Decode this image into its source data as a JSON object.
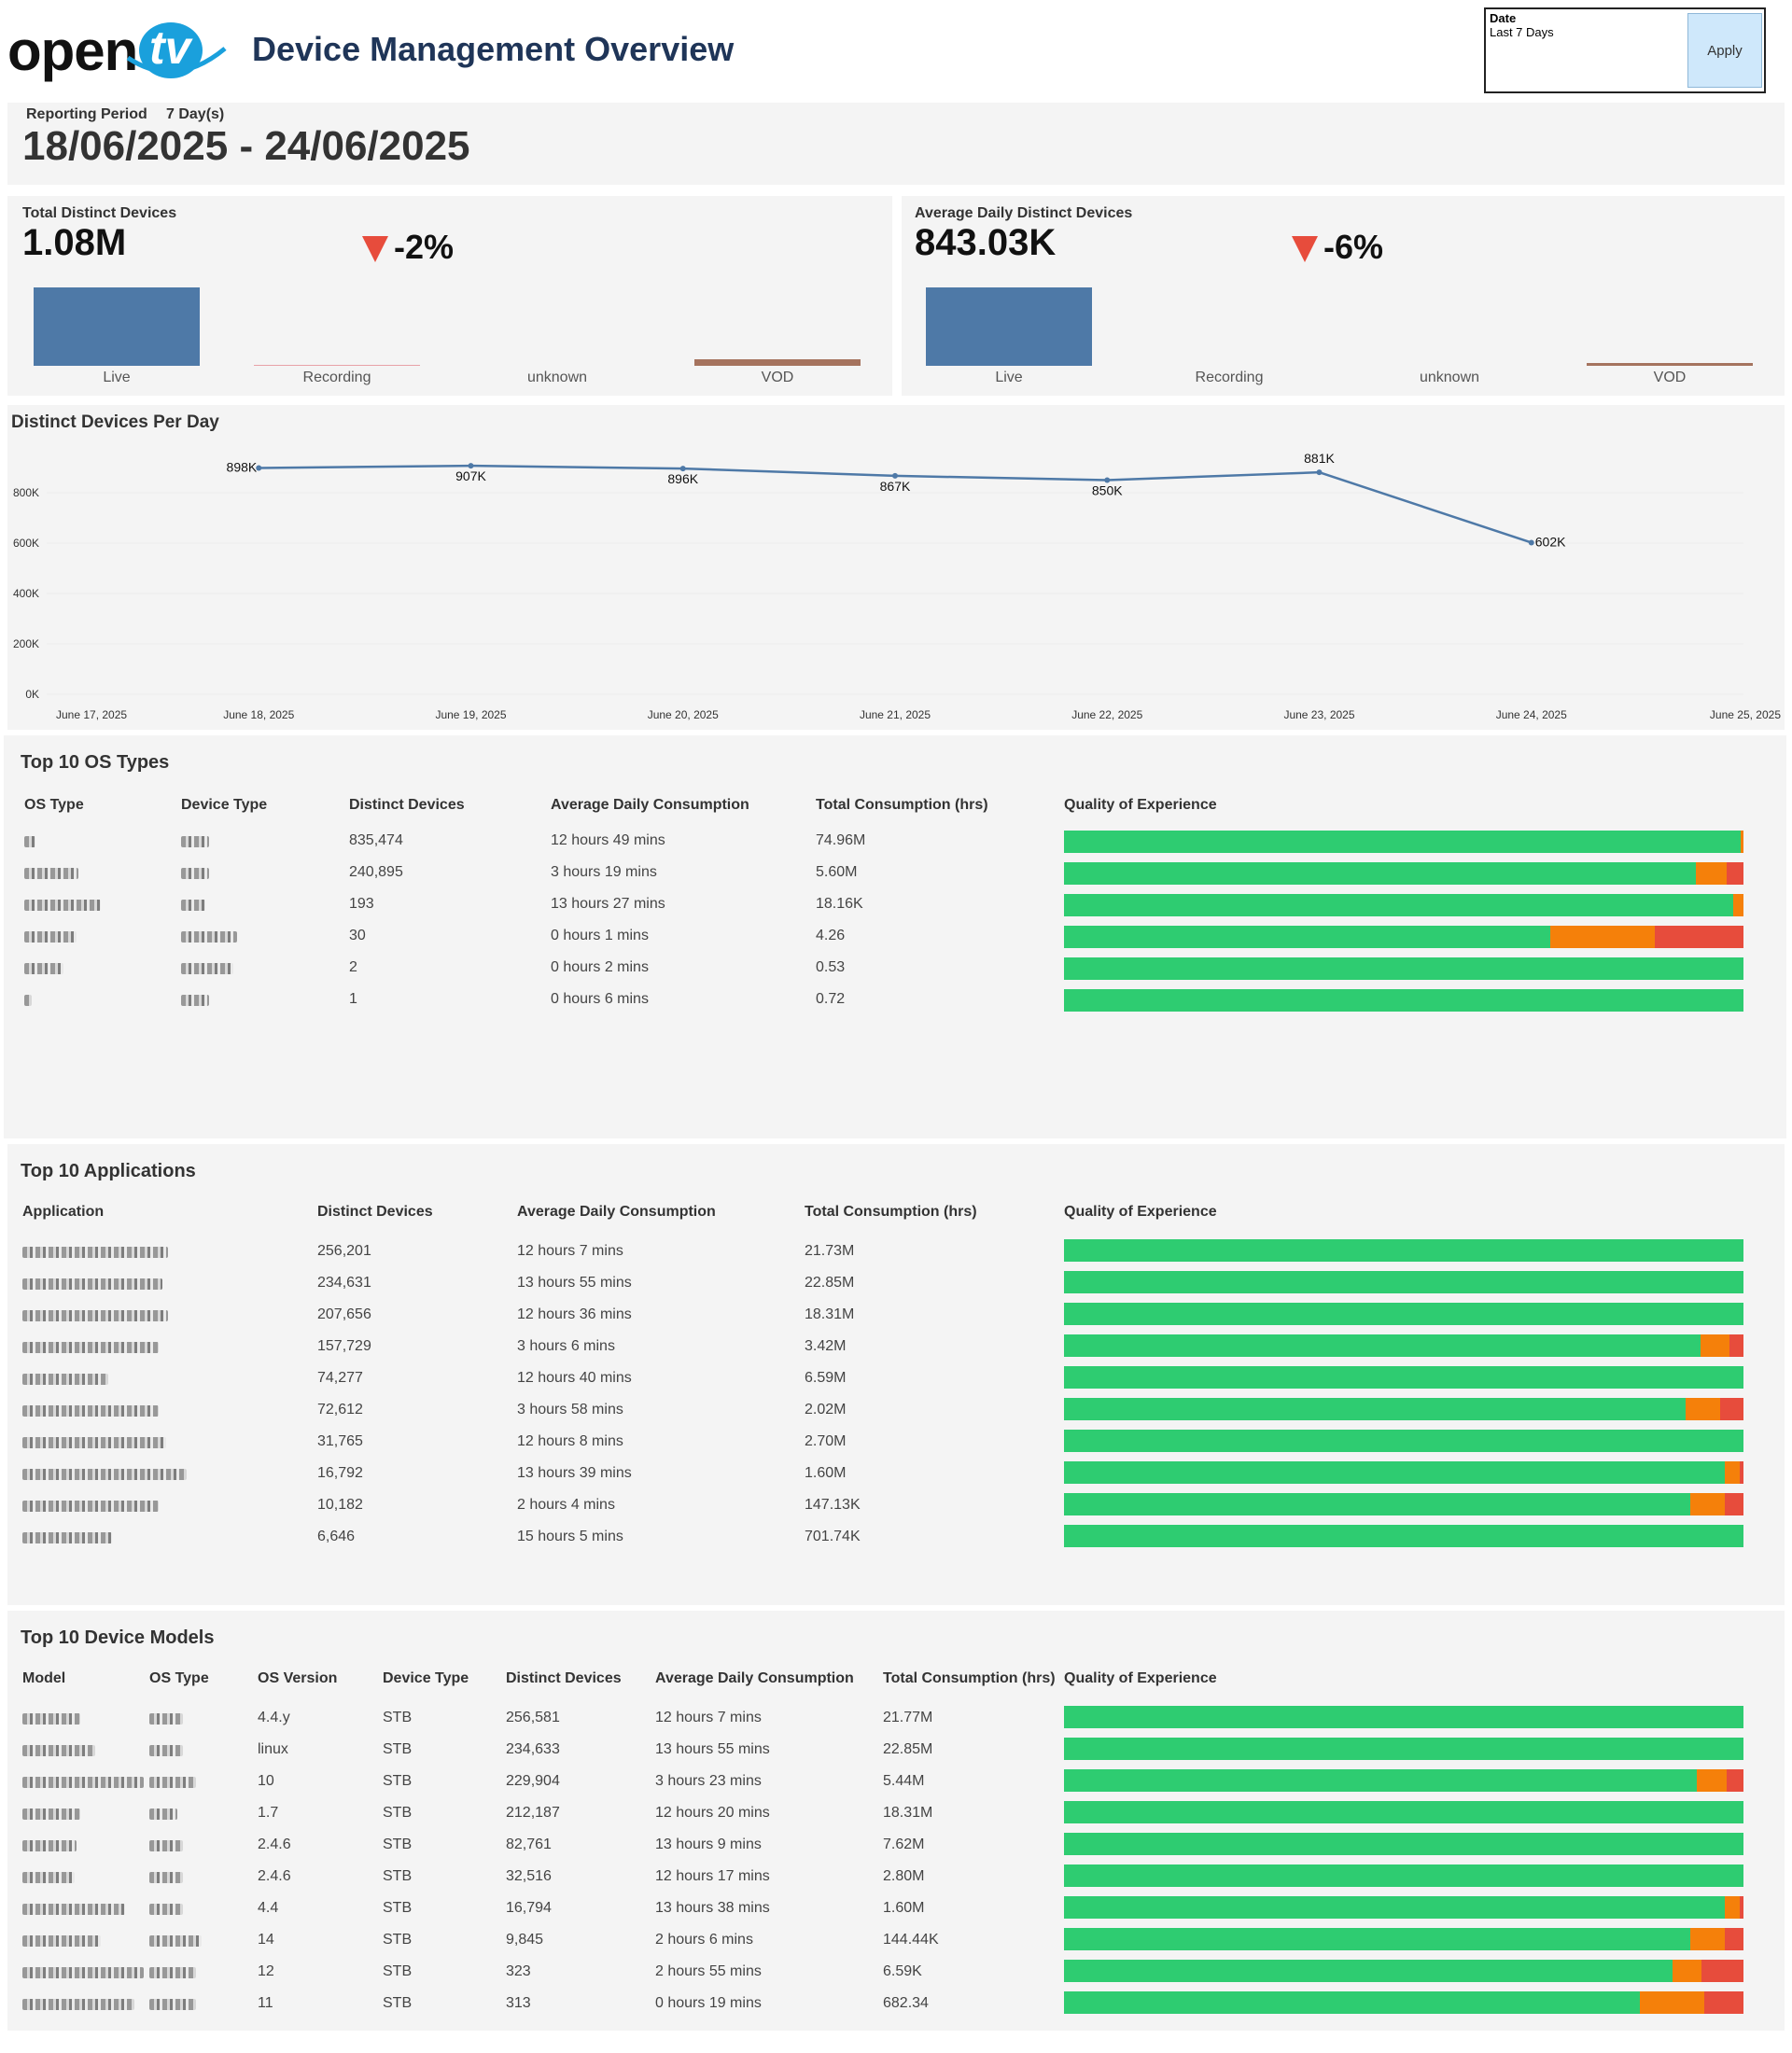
{
  "brand": {
    "logo_open": "open",
    "logo_tv": "tv",
    "accent": "#1aa0dc"
  },
  "page_title": "Device Management Overview",
  "filter": {
    "label": "Date",
    "value": "Last 7 Days",
    "apply": "Apply"
  },
  "reporting": {
    "label": "Reporting Period",
    "days": "7 Day(s)",
    "range": "18/06/2025 - 24/06/2025"
  },
  "kpi": [
    {
      "title": "Total Distinct Devices",
      "value": "1.08M",
      "change": "-2%",
      "cats": [
        "Live",
        "Recording",
        "unknown",
        "VOD"
      ],
      "bar_values": [
        1.0,
        0.01,
        0.0,
        0.08
      ]
    },
    {
      "title": "Average Daily Distinct Devices",
      "value": "843.03K",
      "change": "-6%",
      "cats": [
        "Live",
        "Recording",
        "unknown",
        "VOD"
      ],
      "bar_values": [
        1.0,
        0.0,
        0.0,
        0.03
      ]
    }
  ],
  "chart_data": {
    "type": "line",
    "title": "Distinct Devices Per Day",
    "x": [
      "June 18, 2025",
      "June 19, 2025",
      "June 20, 2025",
      "June 21, 2025",
      "June 22, 2025",
      "June 23, 2025",
      "June 24, 2025"
    ],
    "values": [
      898,
      907,
      896,
      867,
      850,
      881,
      602
    ],
    "data_labels": [
      "898K",
      "907K",
      "896K",
      "867K",
      "850K",
      "881K",
      "602K"
    ],
    "x_ticks": [
      "June 17, 2025",
      "June 18, 2025",
      "June 19, 2025",
      "June 20, 2025",
      "June 21, 2025",
      "June 22, 2025",
      "June 23, 2025",
      "June 24, 2025",
      "June 25, 2025"
    ],
    "y_ticks": [
      "0K",
      "200K",
      "400K",
      "600K",
      "800K"
    ],
    "ylim": [
      0,
      1000
    ],
    "line_color": "#4e79a7"
  },
  "os_table": {
    "title": "Top 10 OS Types",
    "headers": [
      "OS Type",
      "Device Type",
      "Distinct Devices",
      "Average Daily Consumption",
      "Total Consumption (hrs)",
      "Quality of Experience"
    ],
    "rows": [
      {
        "devices": "835,474",
        "avg": "12 hours 49 mins",
        "total": "74.96M",
        "qoe": [
          99.6,
          0.4,
          0
        ]
      },
      {
        "devices": "240,895",
        "avg": "3 hours 19 mins",
        "total": "5.60M",
        "qoe": [
          93,
          4.5,
          2.5
        ]
      },
      {
        "devices": "193",
        "avg": "13 hours 27 mins",
        "total": "18.16K",
        "qoe": [
          98.5,
          1.5,
          0
        ]
      },
      {
        "devices": "30",
        "avg": "0 hours 1 mins",
        "total": "4.26",
        "qoe": [
          71.5,
          15.5,
          13
        ]
      },
      {
        "devices": "2",
        "avg": "0 hours 2 mins",
        "total": "0.53",
        "qoe": [
          100,
          0,
          0
        ]
      },
      {
        "devices": "1",
        "avg": "0 hours 6 mins",
        "total": "0.72",
        "qoe": [
          100,
          0,
          0
        ]
      }
    ]
  },
  "app_table": {
    "title": "Top 10 Applications",
    "headers": [
      "Application",
      "Distinct Devices",
      "Average Daily Consumption",
      "Total Consumption (hrs)",
      "Quality of Experience"
    ],
    "rows": [
      {
        "devices": "256,201",
        "avg": "12 hours 7 mins",
        "total": "21.73M",
        "qoe": [
          100,
          0,
          0
        ]
      },
      {
        "devices": "234,631",
        "avg": "13 hours 55 mins",
        "total": "22.85M",
        "qoe": [
          100,
          0,
          0
        ]
      },
      {
        "devices": "207,656",
        "avg": "12 hours 36 mins",
        "total": "18.31M",
        "qoe": [
          100,
          0,
          0
        ]
      },
      {
        "devices": "157,729",
        "avg": "3 hours 6 mins",
        "total": "3.42M",
        "qoe": [
          93.7,
          4.2,
          2.1
        ]
      },
      {
        "devices": "74,277",
        "avg": "12 hours 40 mins",
        "total": "6.59M",
        "qoe": [
          100,
          0,
          0
        ]
      },
      {
        "devices": "72,612",
        "avg": "3 hours 58 mins",
        "total": "2.02M",
        "qoe": [
          91.5,
          5,
          3.5
        ]
      },
      {
        "devices": "31,765",
        "avg": "12 hours 8 mins",
        "total": "2.70M",
        "qoe": [
          100,
          0,
          0
        ]
      },
      {
        "devices": "16,792",
        "avg": "13 hours 39 mins",
        "total": "1.60M",
        "qoe": [
          97.3,
          2.2,
          0.5
        ]
      },
      {
        "devices": "10,182",
        "avg": "2 hours 4 mins",
        "total": "147.13K",
        "qoe": [
          92.2,
          5.1,
          2.7
        ]
      },
      {
        "devices": "6,646",
        "avg": "15 hours 5 mins",
        "total": "701.74K",
        "qoe": [
          100,
          0,
          0
        ]
      }
    ]
  },
  "model_table": {
    "title": "Top 10 Device Models",
    "headers": [
      "Model",
      "OS Type",
      "OS Version",
      "Device Type",
      "Distinct Devices",
      "Average Daily Consumption",
      "Total Consumption (hrs)",
      "Quality of Experience"
    ],
    "rows": [
      {
        "ver": "4.4.y",
        "type": "STB",
        "devices": "256,581",
        "avg": "12 hours 7 mins",
        "total": "21.77M",
        "qoe": [
          100,
          0,
          0
        ]
      },
      {
        "ver": "linux",
        "type": "STB",
        "devices": "234,633",
        "avg": "13 hours 55 mins",
        "total": "22.85M",
        "qoe": [
          100,
          0,
          0
        ]
      },
      {
        "ver": "10",
        "type": "STB",
        "devices": "229,904",
        "avg": "3 hours 23 mins",
        "total": "5.44M",
        "qoe": [
          93.2,
          4.3,
          2.5
        ]
      },
      {
        "ver": "1.7",
        "type": "STB",
        "devices": "212,187",
        "avg": "12 hours 20 mins",
        "total": "18.31M",
        "qoe": [
          100,
          0,
          0
        ]
      },
      {
        "ver": "2.4.6",
        "type": "STB",
        "devices": "82,761",
        "avg": "13 hours 9 mins",
        "total": "7.62M",
        "qoe": [
          100,
          0,
          0
        ]
      },
      {
        "ver": "2.4.6",
        "type": "STB",
        "devices": "32,516",
        "avg": "12 hours 17 mins",
        "total": "2.80M",
        "qoe": [
          100,
          0,
          0
        ]
      },
      {
        "ver": "4.4",
        "type": "STB",
        "devices": "16,794",
        "avg": "13 hours 38 mins",
        "total": "1.60M",
        "qoe": [
          97.3,
          2.2,
          0.5
        ]
      },
      {
        "ver": "14",
        "type": "STB",
        "devices": "9,845",
        "avg": "2 hours 6 mins",
        "total": "144.44K",
        "qoe": [
          92.2,
          5.1,
          2.7
        ]
      },
      {
        "ver": "12",
        "type": "STB",
        "devices": "323",
        "avg": "2 hours 55 mins",
        "total": "6.59K",
        "qoe": [
          89.6,
          4.2,
          6.2
        ]
      },
      {
        "ver": "11",
        "type": "STB",
        "devices": "313",
        "avg": "0 hours 19 mins",
        "total": "682.34",
        "qoe": [
          84.8,
          9.4,
          5.8
        ]
      }
    ]
  }
}
